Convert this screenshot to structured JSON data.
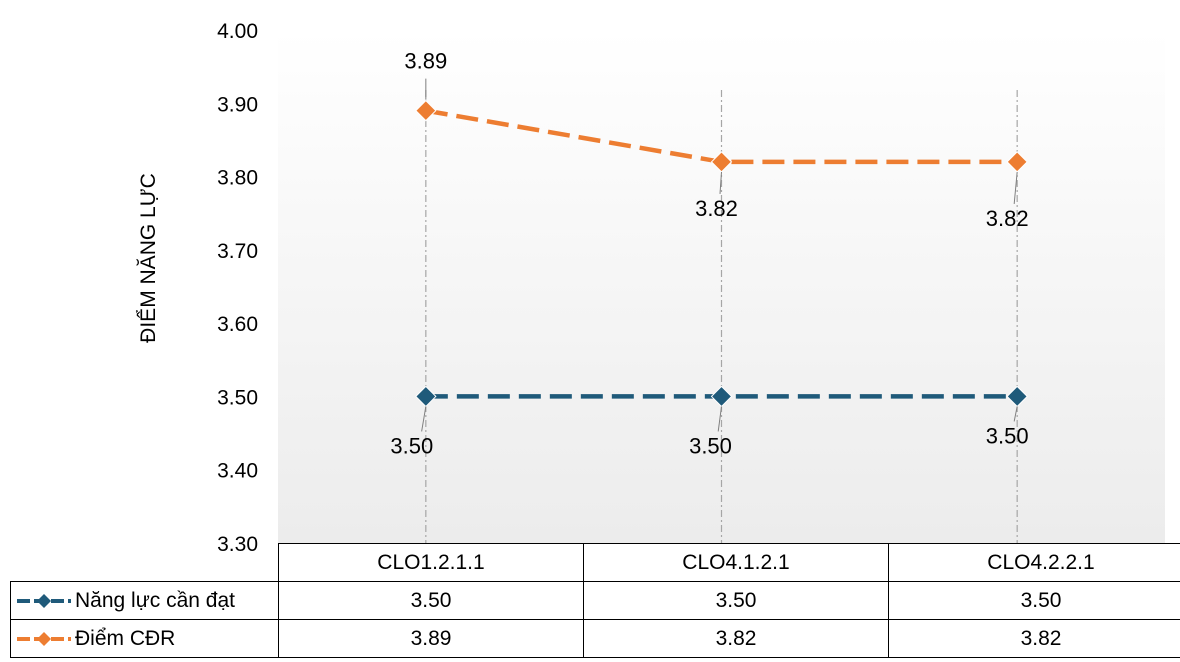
{
  "chart_data": {
    "type": "line",
    "title": "",
    "ylabel": "ĐIỂM NĂNG LỰC",
    "xlabel": "",
    "ylim": [
      3.3,
      4.0
    ],
    "yticks": [
      "3.30",
      "3.40",
      "3.50",
      "3.60",
      "3.70",
      "3.80",
      "3.90",
      "4.00"
    ],
    "categories": [
      "CLO1.2.1.1",
      "CLO4.1.2.1",
      "CLO4.2.2.1"
    ],
    "series": [
      {
        "name": "Năng lực cần đạt",
        "values": [
          3.5,
          3.5,
          3.5
        ],
        "labels": [
          "3.50",
          "3.50",
          "3.50"
        ],
        "color": "#1f5a7a",
        "style": "dashed",
        "marker": "diamond"
      },
      {
        "name": "Điểm CĐR",
        "values": [
          3.89,
          3.82,
          3.82
        ],
        "labels": [
          "3.89",
          "3.82",
          "3.82"
        ],
        "color": "#ed7d31",
        "style": "dashed",
        "marker": "diamond"
      }
    ],
    "grid": false,
    "drop_lines": true,
    "legend": "data-table",
    "colors": {
      "plot_background_top": "#ffffff",
      "plot_background_bottom": "#ececec",
      "drop_line": "#a6a6a6",
      "leader_line": "#7f7f7f"
    }
  }
}
